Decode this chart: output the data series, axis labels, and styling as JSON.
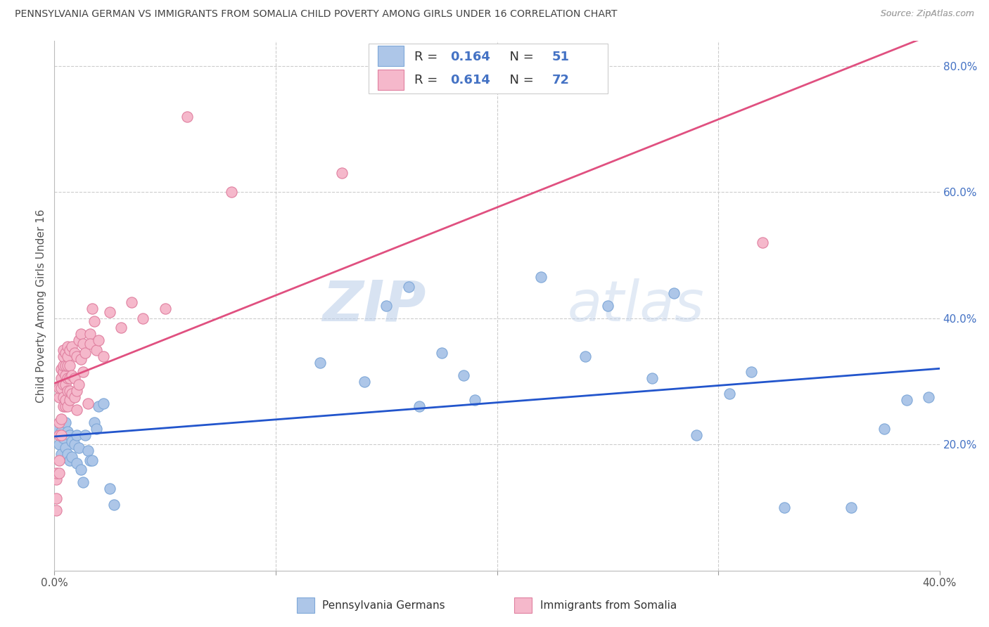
{
  "title": "PENNSYLVANIA GERMAN VS IMMIGRANTS FROM SOMALIA CHILD POVERTY AMONG GIRLS UNDER 16 CORRELATION CHART",
  "source": "Source: ZipAtlas.com",
  "ylabel": "Child Poverty Among Girls Under 16",
  "blue_color": "#adc6e8",
  "pink_color": "#f5b8cb",
  "blue_line_color": "#2255cc",
  "pink_line_color": "#e05080",
  "xlim": [
    0.0,
    0.4
  ],
  "ylim": [
    0.0,
    0.84
  ],
  "yticks_right": [
    0.2,
    0.4,
    0.6,
    0.8
  ],
  "ytick_labels_right": [
    "20.0%",
    "40.0%",
    "60.0%",
    "80.0%"
  ],
  "watermark": "ZIPatlas",
  "background_color": "#ffffff",
  "grid_color": "#cccccc",
  "blue_x": [
    0.001,
    0.002,
    0.002,
    0.003,
    0.003,
    0.004,
    0.005,
    0.005,
    0.006,
    0.006,
    0.007,
    0.007,
    0.008,
    0.008,
    0.009,
    0.01,
    0.01,
    0.011,
    0.012,
    0.013,
    0.014,
    0.015,
    0.016,
    0.017,
    0.018,
    0.019,
    0.02,
    0.022,
    0.025,
    0.027,
    0.12,
    0.14,
    0.15,
    0.16,
    0.165,
    0.175,
    0.185,
    0.19,
    0.22,
    0.24,
    0.25,
    0.27,
    0.28,
    0.29,
    0.305,
    0.315,
    0.33,
    0.36,
    0.375,
    0.385,
    0.395
  ],
  "blue_y": [
    0.225,
    0.215,
    0.2,
    0.22,
    0.185,
    0.21,
    0.235,
    0.195,
    0.22,
    0.185,
    0.215,
    0.175,
    0.205,
    0.18,
    0.2,
    0.215,
    0.17,
    0.195,
    0.16,
    0.14,
    0.215,
    0.19,
    0.175,
    0.175,
    0.235,
    0.225,
    0.26,
    0.265,
    0.13,
    0.105,
    0.33,
    0.3,
    0.42,
    0.45,
    0.26,
    0.345,
    0.31,
    0.27,
    0.465,
    0.34,
    0.42,
    0.305,
    0.44,
    0.215,
    0.28,
    0.315,
    0.1,
    0.1,
    0.225,
    0.27,
    0.275
  ],
  "pink_x": [
    0.001,
    0.001,
    0.001,
    0.001,
    0.002,
    0.002,
    0.002,
    0.002,
    0.002,
    0.002,
    0.003,
    0.003,
    0.003,
    0.003,
    0.003,
    0.004,
    0.004,
    0.004,
    0.004,
    0.004,
    0.004,
    0.004,
    0.005,
    0.005,
    0.005,
    0.005,
    0.005,
    0.005,
    0.006,
    0.006,
    0.006,
    0.006,
    0.006,
    0.006,
    0.007,
    0.007,
    0.007,
    0.007,
    0.007,
    0.008,
    0.008,
    0.008,
    0.009,
    0.009,
    0.009,
    0.01,
    0.01,
    0.01,
    0.011,
    0.011,
    0.012,
    0.012,
    0.013,
    0.013,
    0.014,
    0.015,
    0.016,
    0.016,
    0.017,
    0.018,
    0.019,
    0.02,
    0.022,
    0.025,
    0.03,
    0.035,
    0.04,
    0.05,
    0.06,
    0.08,
    0.13,
    0.32
  ],
  "pink_y": [
    0.095,
    0.115,
    0.145,
    0.155,
    0.155,
    0.175,
    0.215,
    0.235,
    0.275,
    0.29,
    0.215,
    0.24,
    0.29,
    0.305,
    0.32,
    0.26,
    0.275,
    0.295,
    0.315,
    0.325,
    0.34,
    0.35,
    0.26,
    0.27,
    0.295,
    0.31,
    0.325,
    0.345,
    0.26,
    0.285,
    0.305,
    0.325,
    0.34,
    0.355,
    0.27,
    0.285,
    0.305,
    0.325,
    0.35,
    0.28,
    0.31,
    0.355,
    0.275,
    0.305,
    0.345,
    0.255,
    0.285,
    0.34,
    0.295,
    0.365,
    0.335,
    0.375,
    0.315,
    0.36,
    0.345,
    0.265,
    0.375,
    0.36,
    0.415,
    0.395,
    0.35,
    0.365,
    0.34,
    0.41,
    0.385,
    0.425,
    0.4,
    0.415,
    0.72,
    0.6,
    0.63,
    0.52
  ],
  "legend_blue_label_R": "0.164",
  "legend_blue_label_N": "51",
  "legend_pink_label_R": "0.614",
  "legend_pink_label_N": "72",
  "pennsylvania_label": "Pennsylvania Germans",
  "somalia_label": "Immigrants from Somalia"
}
